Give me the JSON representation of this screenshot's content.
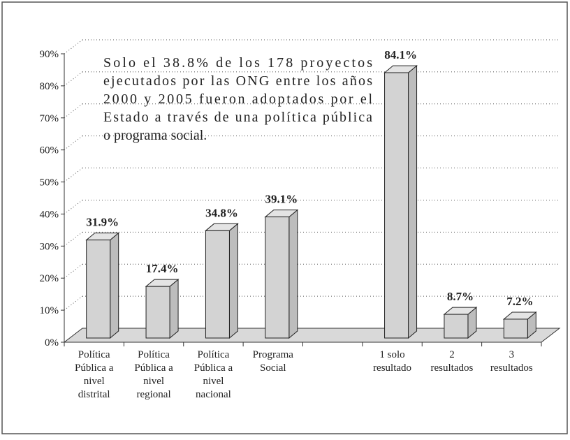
{
  "chart_data": {
    "type": "bar3d",
    "annotation": [
      "Solo el 38.8% de los 178 proyectos",
      "ejecutados por las ONG entre los años",
      "2000 y 2005 fueron adoptados por el",
      "Estado a través de una política pública",
      "o programa social."
    ],
    "categories": [
      [
        "Política",
        "Pública a",
        "nivel",
        "distrital"
      ],
      [
        "Política",
        "Pública a",
        "nivel",
        "regional"
      ],
      [
        "Política",
        "Pública a",
        "nivel",
        "nacional"
      ],
      [
        "Programa",
        "Social"
      ],
      null,
      [
        "1 solo",
        "resultado"
      ],
      [
        "2",
        "resultados"
      ],
      [
        "3",
        "resultados"
      ]
    ],
    "values": [
      31.9,
      17.4,
      34.8,
      39.1,
      null,
      84.1,
      8.7,
      7.2
    ],
    "value_labels": [
      "31.9%",
      "17.4%",
      "34.8%",
      "39.1%",
      null,
      "84.1%",
      "8.7%",
      "7.2%"
    ],
    "color": "#d3d3d3",
    "ylim": [
      0,
      90
    ],
    "yticks": [
      {
        "value": 0,
        "label": "0%"
      },
      {
        "value": 10,
        "label": "10%"
      },
      {
        "value": 20,
        "label": "20%"
      },
      {
        "value": 30,
        "label": "30%"
      },
      {
        "value": 40,
        "label": "40%"
      },
      {
        "value": 50,
        "label": "50%"
      },
      {
        "value": 60,
        "label": "60%"
      },
      {
        "value": 70,
        "label": "70%"
      },
      {
        "value": 80,
        "label": "80%"
      },
      {
        "value": 90,
        "label": "90%"
      }
    ],
    "grid": true
  }
}
